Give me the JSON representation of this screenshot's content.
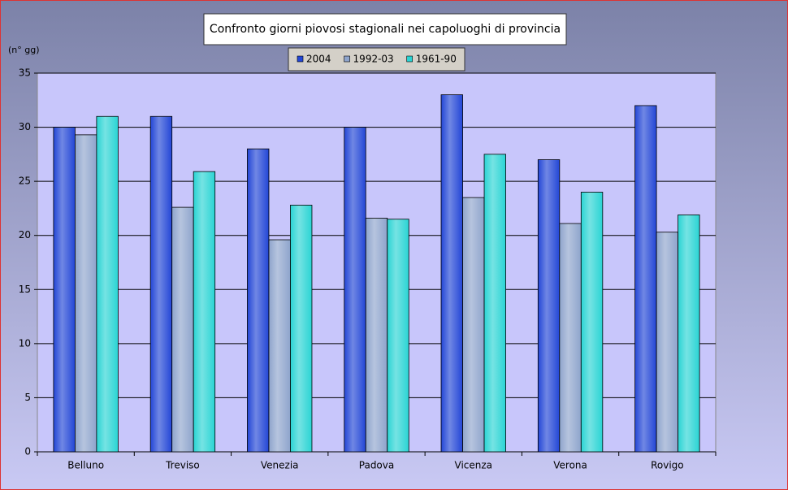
{
  "chart_data": {
    "type": "bar",
    "title": "Confronto giorni piovosi stagionali nei capoluoghi di provincia",
    "y_label": "(n° gg)",
    "categories": [
      "Belluno",
      "Treviso",
      "Venezia",
      "Padova",
      "Vicenza",
      "Verona",
      "Rovigo"
    ],
    "series": [
      {
        "name": "2004",
        "color": "#2346d6",
        "values": [
          30,
          31,
          28,
          30,
          33,
          27,
          32
        ]
      },
      {
        "name": "1992-03",
        "color": "#8ea4cc",
        "values": [
          29.3,
          22.6,
          19.6,
          21.6,
          23.5,
          21.1,
          20.3
        ]
      },
      {
        "name": "1961-90",
        "color": "#2ad4d4",
        "values": [
          31,
          25.9,
          22.8,
          21.5,
          27.5,
          24,
          21.9
        ]
      }
    ],
    "ylim": [
      0,
      35
    ],
    "yticks": [
      0,
      5,
      10,
      15,
      20,
      25,
      30,
      35
    ],
    "grid": true
  }
}
